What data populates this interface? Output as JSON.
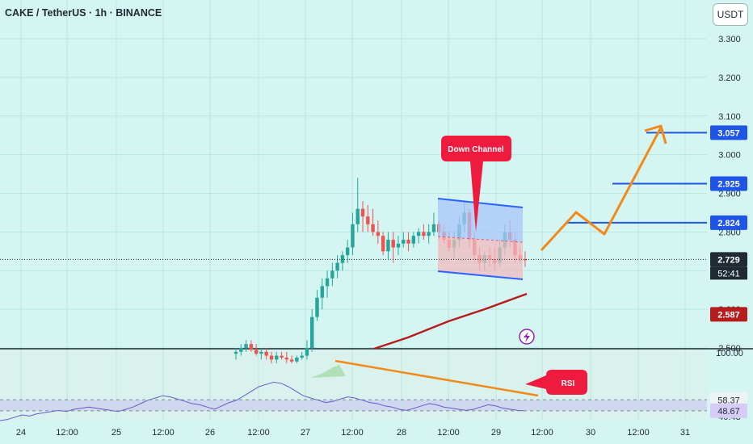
{
  "header": {
    "symbol_text": "CAKE / TetherUS · 1h · BINANCE",
    "currency": "USDT"
  },
  "chart_data": [
    {
      "type": "candlestick",
      "title": "CAKE / TetherUS · 1h · BINANCE",
      "yticks": [
        "3.300",
        "3.200",
        "3.100",
        "3.000",
        "2.900",
        "2.800",
        "2.600",
        "2.500"
      ],
      "ylim": [
        2.47,
        3.38
      ],
      "xticks": [
        "24",
        "12:00",
        "25",
        "12:00",
        "26",
        "12:00",
        "27",
        "12:00",
        "28",
        "12:00",
        "29",
        "12:00",
        "30",
        "12:00",
        "31"
      ],
      "grid": true,
      "colors": {
        "up": "#26a69a",
        "down": "#ef5350",
        "price_line": "#1f2a33",
        "moving_average": "#b71c1c",
        "levels": "#1e55e6",
        "projection": "#f28a1b",
        "channel_upper": "#2962ff"
      },
      "candles_ohlc": [
        [
          2.485,
          2.5,
          2.47,
          2.49
        ],
        [
          2.49,
          2.51,
          2.48,
          2.5
        ],
        [
          2.5,
          2.52,
          2.49,
          2.51
        ],
        [
          2.51,
          2.52,
          2.49,
          2.495
        ],
        [
          2.495,
          2.51,
          2.48,
          2.485
        ],
        [
          2.485,
          2.5,
          2.47,
          2.49
        ],
        [
          2.49,
          2.5,
          2.47,
          2.48
        ],
        [
          2.48,
          2.49,
          2.46,
          2.47
        ],
        [
          2.47,
          2.49,
          2.46,
          2.48
        ],
        [
          2.48,
          2.49,
          2.47,
          2.475
        ],
        [
          2.475,
          2.49,
          2.46,
          2.47
        ],
        [
          2.47,
          2.48,
          2.46,
          2.465
        ],
        [
          2.465,
          2.48,
          2.46,
          2.475
        ],
        [
          2.475,
          2.49,
          2.47,
          2.48
        ],
        [
          2.48,
          2.52,
          2.47,
          2.5
        ],
        [
          2.5,
          2.6,
          2.49,
          2.58
        ],
        [
          2.58,
          2.65,
          2.57,
          2.63
        ],
        [
          2.63,
          2.68,
          2.6,
          2.66
        ],
        [
          2.66,
          2.7,
          2.63,
          2.68
        ],
        [
          2.68,
          2.72,
          2.66,
          2.7
        ],
        [
          2.7,
          2.74,
          2.68,
          2.72
        ],
        [
          2.72,
          2.75,
          2.7,
          2.74
        ],
        [
          2.74,
          2.78,
          2.72,
          2.76
        ],
        [
          2.76,
          2.85,
          2.74,
          2.82
        ],
        [
          2.82,
          2.94,
          2.8,
          2.86
        ],
        [
          2.86,
          2.88,
          2.8,
          2.84
        ],
        [
          2.84,
          2.87,
          2.8,
          2.82
        ],
        [
          2.82,
          2.86,
          2.79,
          2.8
        ],
        [
          2.8,
          2.83,
          2.77,
          2.79
        ],
        [
          2.79,
          2.8,
          2.74,
          2.75
        ],
        [
          2.75,
          2.8,
          2.73,
          2.78
        ],
        [
          2.78,
          2.8,
          2.72,
          2.76
        ],
        [
          2.76,
          2.79,
          2.74,
          2.77
        ],
        [
          2.77,
          2.8,
          2.76,
          2.78
        ],
        [
          2.78,
          2.8,
          2.75,
          2.77
        ],
        [
          2.77,
          2.8,
          2.76,
          2.79
        ],
        [
          2.79,
          2.81,
          2.77,
          2.8
        ],
        [
          2.8,
          2.82,
          2.78,
          2.79
        ],
        [
          2.79,
          2.82,
          2.77,
          2.8
        ],
        [
          2.8,
          2.85,
          2.79,
          2.82
        ],
        [
          2.82,
          2.83,
          2.78,
          2.8
        ],
        [
          2.8,
          2.82,
          2.77,
          2.78
        ],
        [
          2.78,
          2.8,
          2.75,
          2.76
        ],
        [
          2.76,
          2.8,
          2.73,
          2.78
        ],
        [
          2.78,
          2.84,
          2.76,
          2.82
        ],
        [
          2.82,
          2.88,
          2.8,
          2.85
        ],
        [
          2.85,
          2.86,
          2.76,
          2.78
        ],
        [
          2.78,
          2.8,
          2.72,
          2.74
        ],
        [
          2.74,
          2.76,
          2.7,
          2.72
        ],
        [
          2.72,
          2.75,
          2.7,
          2.74
        ],
        [
          2.74,
          2.76,
          2.71,
          2.73
        ],
        [
          2.73,
          2.76,
          2.7,
          2.72
        ],
        [
          2.72,
          2.78,
          2.71,
          2.76
        ],
        [
          2.76,
          2.82,
          2.74,
          2.8
        ],
        [
          2.8,
          2.83,
          2.76,
          2.78
        ],
        [
          2.78,
          2.8,
          2.72,
          2.74
        ],
        [
          2.74,
          2.76,
          2.72,
          2.73
        ],
        [
          2.73,
          2.75,
          2.71,
          2.729
        ]
      ],
      "price_labels": [
        {
          "text": "3.057",
          "value": 3.057,
          "color": "#1e55e6"
        },
        {
          "text": "2.925",
          "value": 2.925,
          "color": "#1e55e6"
        },
        {
          "text": "2.824",
          "value": 2.824,
          "color": "#1e55e6"
        },
        {
          "text": "2.729",
          "value": 2.729,
          "color": "#1f2a33"
        },
        {
          "text": "2.587",
          "value": 2.587,
          "color": "#b71c1c"
        }
      ],
      "countdown": "52:41",
      "annotations": [
        {
          "text": "Down Channel"
        },
        {
          "text": "RSI"
        }
      ]
    },
    {
      "type": "line",
      "series": [
        {
          "values": [
            40,
            41,
            43,
            45,
            44,
            46,
            47,
            48,
            49,
            48,
            50,
            51,
            52,
            51,
            50,
            49,
            48,
            50,
            52,
            55,
            58,
            60,
            62,
            61,
            59,
            57,
            55,
            54,
            52,
            50,
            53,
            56,
            58,
            62,
            66,
            70,
            72,
            74,
            73,
            70,
            66,
            62,
            60,
            58,
            56,
            57,
            59,
            61,
            60,
            58,
            56,
            55,
            53,
            52,
            50,
            49,
            51,
            53,
            55,
            54,
            52,
            51,
            50,
            49,
            50,
            52,
            54,
            53,
            51,
            50,
            49,
            48.67
          ]
        }
      ],
      "ylim": [
        40,
        100
      ],
      "yticks": [
        "100.00",
        "58.37",
        "48.67",
        "40.43"
      ],
      "value_labels": [
        {
          "text": "58.37",
          "color": "#ffffff"
        },
        {
          "text": "48.67",
          "color": "#7e57c2"
        }
      ]
    }
  ]
}
